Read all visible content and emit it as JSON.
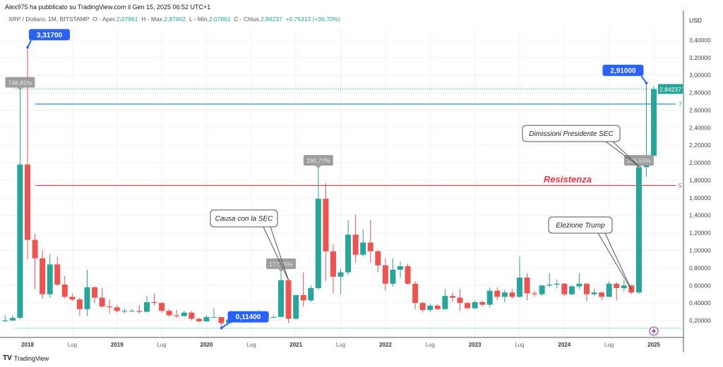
{
  "header": {
    "published": "Alex975 ha pubblicato su TradingView.com il Gen 15, 2025 06:52 UTC+1",
    "symbol": "XRP / Dollaro, 1M, BITSTAMP",
    "o_label": "O - Aper.",
    "o": "2,07861",
    "h_label": "H - Max.",
    "h": "2,87602",
    "l_label": "L - Min.",
    "l": "2,07861",
    "c_label": "C - Chius.",
    "c": "2,84237",
    "change": "+0,76313 (+36,70%)"
  },
  "footer": {
    "brand": "TradingView"
  },
  "colors": {
    "up": "#26a69a",
    "down": "#ef5350",
    "label_blue": "#2962ff",
    "resistance": "#f23645",
    "line_blue": "#2196f3"
  },
  "chart_data": {
    "type": "candlestick",
    "currency": "USD",
    "ylim": [
      0,
      3.55
    ],
    "y_ticks": [
      "0,20000",
      "0,40000",
      "0,60000",
      "0,80000",
      "1,00000",
      "1,20000",
      "1,40000",
      "1,60000",
      "1,80000",
      "2,00000",
      "2,20000",
      "2,40000",
      "2,60000",
      "2,80000",
      "3,00000",
      "3,20000",
      "3,40000"
    ],
    "x_ticks": [
      "2018",
      "Lug",
      "2019",
      "Lug",
      "2020",
      "Lug",
      "2021",
      "Lug",
      "2022",
      "Lug",
      "2023",
      "Lug",
      "2024",
      "Lug",
      "2025"
    ],
    "start_month": "2017-10",
    "ohlc": [
      [
        0.2,
        0.26,
        0.18,
        0.2
      ],
      [
        0.2,
        0.26,
        0.19,
        0.23
      ],
      [
        0.23,
        2.85,
        0.22,
        1.98
      ],
      [
        1.98,
        3.317,
        0.9,
        1.12
      ],
      [
        1.12,
        1.19,
        0.56,
        0.91
      ],
      [
        0.91,
        1.0,
        0.45,
        0.5
      ],
      [
        0.5,
        0.96,
        0.46,
        0.84
      ],
      [
        0.84,
        0.93,
        0.59,
        0.61
      ],
      [
        0.61,
        0.71,
        0.45,
        0.47
      ],
      [
        0.47,
        0.51,
        0.42,
        0.44
      ],
      [
        0.44,
        0.46,
        0.25,
        0.33
      ],
      [
        0.33,
        0.78,
        0.25,
        0.58
      ],
      [
        0.58,
        0.59,
        0.4,
        0.46
      ],
      [
        0.46,
        0.57,
        0.35,
        0.36
      ],
      [
        0.36,
        0.44,
        0.28,
        0.35
      ],
      [
        0.35,
        0.38,
        0.29,
        0.31
      ],
      [
        0.31,
        0.34,
        0.28,
        0.31
      ],
      [
        0.31,
        0.33,
        0.3,
        0.31
      ],
      [
        0.31,
        0.38,
        0.28,
        0.3
      ],
      [
        0.3,
        0.48,
        0.29,
        0.41
      ],
      [
        0.41,
        0.51,
        0.37,
        0.4
      ],
      [
        0.4,
        0.41,
        0.29,
        0.31
      ],
      [
        0.31,
        0.33,
        0.24,
        0.26
      ],
      [
        0.26,
        0.32,
        0.23,
        0.25
      ],
      [
        0.25,
        0.31,
        0.25,
        0.29
      ],
      [
        0.29,
        0.31,
        0.2,
        0.22
      ],
      [
        0.22,
        0.23,
        0.18,
        0.19
      ],
      [
        0.19,
        0.26,
        0.19,
        0.24
      ],
      [
        0.24,
        0.34,
        0.23,
        0.24
      ],
      [
        0.24,
        0.24,
        0.114,
        0.17
      ],
      [
        0.17,
        0.22,
        0.17,
        0.21
      ],
      [
        0.21,
        0.21,
        0.18,
        0.2
      ],
      [
        0.2,
        0.21,
        0.17,
        0.18
      ],
      [
        0.18,
        0.26,
        0.17,
        0.25
      ],
      [
        0.25,
        0.32,
        0.24,
        0.28
      ],
      [
        0.28,
        0.28,
        0.22,
        0.24
      ],
      [
        0.24,
        0.26,
        0.23,
        0.24
      ],
      [
        0.24,
        0.78,
        0.24,
        0.66
      ],
      [
        0.66,
        0.68,
        0.17,
        0.22
      ],
      [
        0.22,
        0.49,
        0.21,
        0.49
      ],
      [
        0.49,
        0.75,
        0.36,
        0.43
      ],
      [
        0.43,
        0.6,
        0.41,
        0.57
      ],
      [
        0.57,
        1.96,
        0.55,
        1.59
      ],
      [
        1.59,
        1.77,
        0.65,
        0.99
      ],
      [
        0.99,
        1.07,
        0.51,
        0.7
      ],
      [
        0.7,
        0.79,
        0.5,
        0.75
      ],
      [
        0.75,
        1.35,
        0.72,
        1.18
      ],
      [
        1.18,
        1.41,
        0.86,
        0.95
      ],
      [
        0.95,
        1.24,
        0.93,
        1.09
      ],
      [
        1.09,
        1.35,
        0.86,
        0.99
      ],
      [
        0.99,
        1.01,
        0.75,
        0.83
      ],
      [
        0.83,
        0.91,
        0.54,
        0.62
      ],
      [
        0.62,
        0.91,
        0.59,
        0.78
      ],
      [
        0.78,
        0.87,
        0.69,
        0.82
      ],
      [
        0.82,
        0.85,
        0.61,
        0.62
      ],
      [
        0.62,
        0.65,
        0.33,
        0.4
      ],
      [
        0.4,
        0.42,
        0.29,
        0.32
      ],
      [
        0.32,
        0.39,
        0.3,
        0.37
      ],
      [
        0.37,
        0.39,
        0.32,
        0.33
      ],
      [
        0.33,
        0.56,
        0.32,
        0.48
      ],
      [
        0.48,
        0.52,
        0.41,
        0.46
      ],
      [
        0.46,
        0.56,
        0.31,
        0.4
      ],
      [
        0.4,
        0.41,
        0.33,
        0.34
      ],
      [
        0.34,
        0.43,
        0.33,
        0.41
      ],
      [
        0.41,
        0.43,
        0.36,
        0.38
      ],
      [
        0.38,
        0.58,
        0.35,
        0.54
      ],
      [
        0.54,
        0.58,
        0.43,
        0.47
      ],
      [
        0.47,
        0.55,
        0.41,
        0.52
      ],
      [
        0.52,
        0.56,
        0.45,
        0.47
      ],
      [
        0.47,
        0.93,
        0.46,
        0.69
      ],
      [
        0.69,
        0.74,
        0.43,
        0.51
      ],
      [
        0.51,
        0.54,
        0.47,
        0.5
      ],
      [
        0.5,
        0.6,
        0.48,
        0.6
      ],
      [
        0.6,
        0.74,
        0.58,
        0.61
      ],
      [
        0.61,
        0.67,
        0.57,
        0.62
      ],
      [
        0.62,
        0.63,
        0.48,
        0.5
      ],
      [
        0.5,
        0.6,
        0.49,
        0.59
      ],
      [
        0.59,
        0.74,
        0.56,
        0.62
      ],
      [
        0.62,
        0.63,
        0.42,
        0.5
      ],
      [
        0.5,
        0.56,
        0.48,
        0.52
      ],
      [
        0.52,
        0.53,
        0.43,
        0.47
      ],
      [
        0.47,
        0.65,
        0.47,
        0.62
      ],
      [
        0.62,
        0.64,
        0.43,
        0.57
      ],
      [
        0.57,
        0.66,
        0.53,
        0.6
      ],
      [
        0.6,
        0.61,
        0.5,
        0.52
      ],
      [
        0.52,
        1.96,
        0.5,
        1.95
      ],
      [
        1.95,
        2.91,
        1.84,
        2.08
      ],
      [
        2.08,
        2.876,
        2.08,
        2.84237
      ]
    ],
    "lines": [
      {
        "price": 2.67,
        "color": "#2196f3",
        "tag": "7"
      },
      {
        "price": 1.74,
        "color": "#f23645",
        "tag": "5"
      }
    ],
    "last_price": "2,84237",
    "price_labels": [
      {
        "text": "3,31700",
        "month": 3,
        "price": 3.317
      },
      {
        "text": "2,91000",
        "month": 86,
        "price": 2.91
      },
      {
        "text": "0,11400",
        "month": 29,
        "price": 0.114
      }
    ],
    "pct_labels": [
      {
        "text": "746,81%",
        "month": 2,
        "price": 2.85
      },
      {
        "text": "177,35%",
        "month": 37,
        "price": 0.78
      },
      {
        "text": "180,77%",
        "month": 42,
        "price": 1.96
      },
      {
        "text": "265,55%",
        "month": 85,
        "price": 1.96
      }
    ],
    "annotations": [
      {
        "text": "Causa con la SEC",
        "month": 38
      },
      {
        "text": "Dimissioni Presidente SEC",
        "month": 85
      },
      {
        "text": "Elezione Trump",
        "month": 84
      }
    ],
    "resistance_label": "Resistenza"
  }
}
